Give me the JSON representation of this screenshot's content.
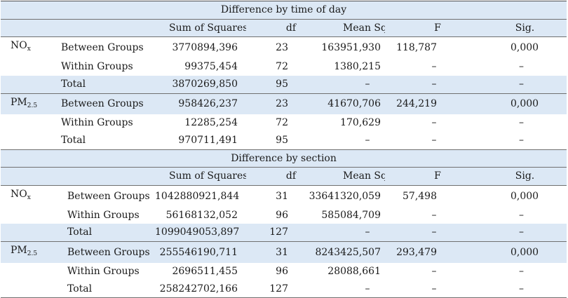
{
  "sections": [
    {
      "title": "Difference by time of day",
      "headers": {
        "sum_of_squares": "Sum of Squares",
        "df": "df",
        "mean_square": "Mean Square",
        "f": "F",
        "sig": "Sig."
      },
      "groups": [
        {
          "pollutant": "NO",
          "pollutant_sub": "x",
          "rows": [
            {
              "label": "Between Groups",
              "ss": "3770894,396",
              "df": "23",
              "ms": "163951,930",
              "f": "118,787",
              "sig": "0,000"
            },
            {
              "label": "Within Groups",
              "ss": "99375,454",
              "df": "72",
              "ms": "1380,215",
              "f": "–",
              "sig": "–"
            },
            {
              "label": "Total",
              "ss": "3870269,850",
              "df": "95",
              "ms": "–",
              "f": "–",
              "sig": "–"
            }
          ]
        },
        {
          "pollutant": "PM",
          "pollutant_sub": "2.5",
          "rows": [
            {
              "label": "Between Groups",
              "ss": "958426,237",
              "df": "23",
              "ms": "41670,706",
              "f": "244,219",
              "sig": "0,000"
            },
            {
              "label": "Within Groups",
              "ss": "12285,254",
              "df": "72",
              "ms": "170,629",
              "f": "–",
              "sig": "–"
            },
            {
              "label": "Total",
              "ss": "970711,491",
              "df": "95",
              "ms": "–",
              "f": "–",
              "sig": "–"
            }
          ]
        }
      ]
    },
    {
      "title": "Difference by section",
      "headers": {
        "sum_of_squares": "Sum of Squares",
        "df": "df",
        "mean_square": "Mean Square",
        "f": "F",
        "sig": "Sig."
      },
      "groups": [
        {
          "pollutant": "NO",
          "pollutant_sub": "x",
          "rows": [
            {
              "label": "Between Groups",
              "ss": "1042880921,844",
              "df": "31",
              "ms": "33641320,059",
              "f": "57,498",
              "sig": "0,000"
            },
            {
              "label": "Within Groups",
              "ss": "56168132,052",
              "df": "96",
              "ms": "585084,709",
              "f": "–",
              "sig": "–"
            },
            {
              "label": "Total",
              "ss": "1099049053,897",
              "df": "127",
              "ms": "–",
              "f": "–",
              "sig": "–"
            }
          ]
        },
        {
          "pollutant": "PM",
          "pollutant_sub": "2.5",
          "rows": [
            {
              "label": "Between Groups",
              "ss": "255546190,711",
              "df": "31",
              "ms": "8243425,507",
              "f": "293,479",
              "sig": "0,000"
            },
            {
              "label": "Within Groups",
              "ss": "2696511,455",
              "df": "96",
              "ms": "28088,661",
              "f": "–",
              "sig": "–"
            },
            {
              "label": "Total",
              "ss": "258242702,166",
              "df": "127",
              "ms": "–",
              "f": "–",
              "sig": "–"
            }
          ]
        }
      ]
    }
  ],
  "colors": {
    "shade": "#dce8f5",
    "rule": "#707070",
    "text": "#1a1a1a"
  }
}
